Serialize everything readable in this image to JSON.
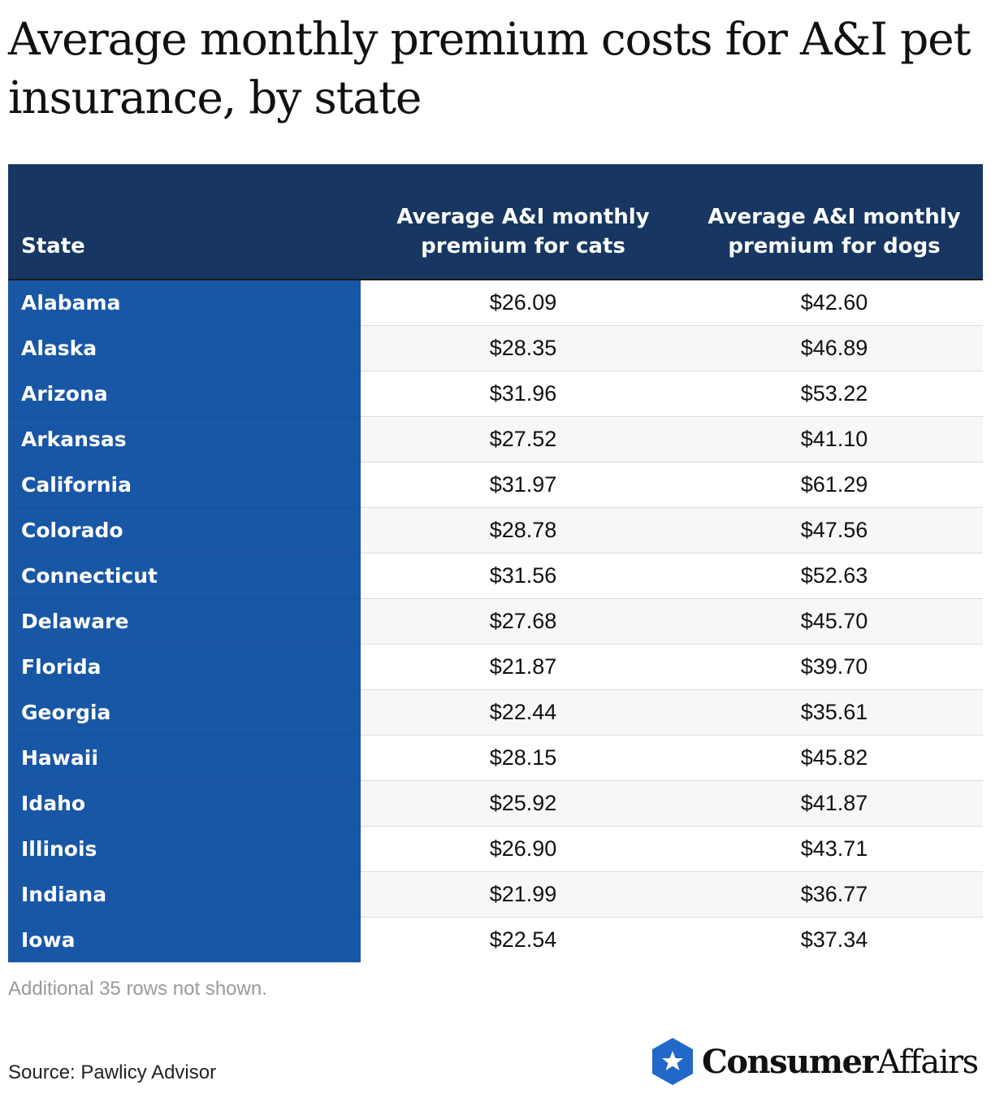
{
  "title": "Average monthly premium costs for A&I pet insurance, by state",
  "chart_data": {
    "type": "table",
    "title": "Average monthly premium costs for A&I pet insurance, by state",
    "columns": [
      "State",
      "Average A&I monthly premium for cats",
      "Average A&I monthly premium for dogs"
    ],
    "rows": [
      [
        "Alabama",
        "$26.09",
        "$42.60"
      ],
      [
        "Alaska",
        "$28.35",
        "$46.89"
      ],
      [
        "Arizona",
        "$31.96",
        "$53.22"
      ],
      [
        "Arkansas",
        "$27.52",
        "$41.10"
      ],
      [
        "California",
        "$31.97",
        "$61.29"
      ],
      [
        "Colorado",
        "$28.78",
        "$47.56"
      ],
      [
        "Connecticut",
        "$31.56",
        "$52.63"
      ],
      [
        "Delaware",
        "$27.68",
        "$45.70"
      ],
      [
        "Florida",
        "$21.87",
        "$39.70"
      ],
      [
        "Georgia",
        "$22.44",
        "$35.61"
      ],
      [
        "Hawaii",
        "$28.15",
        "$45.82"
      ],
      [
        "Idaho",
        "$25.92",
        "$41.87"
      ],
      [
        "Illinois",
        "$26.90",
        "$43.71"
      ],
      [
        "Indiana",
        "$21.99",
        "$36.77"
      ],
      [
        "Iowa",
        "$22.54",
        "$37.34"
      ]
    ]
  },
  "note": "Additional 35 rows not shown.",
  "source": "Source: Pawlicy Advisor",
  "logo": {
    "text_bold": "Consumer",
    "text_regular": "Affairs",
    "icon": "star-hexagon-icon"
  },
  "colors": {
    "header_bg": "#173762",
    "state_col_bg": "#1856A6",
    "logo_blue": "#2168C8"
  }
}
